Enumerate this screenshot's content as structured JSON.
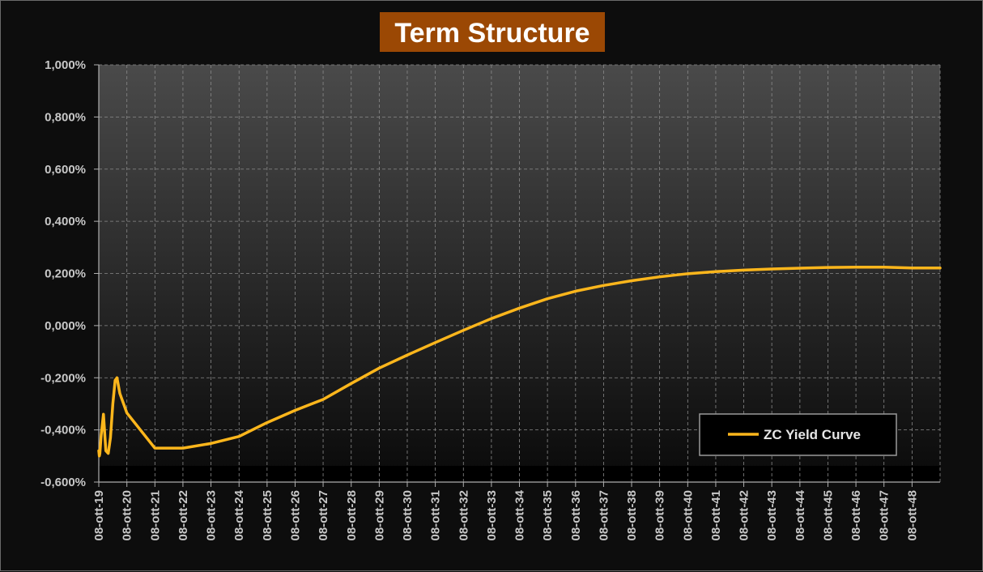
{
  "chart_data": {
    "type": "line",
    "title": "Term Structure",
    "xlabel": "",
    "ylabel": "",
    "x_tick_labels": [
      "08-ott-19",
      "08-ott-20",
      "08-ott-21",
      "08-ott-22",
      "08-ott-23",
      "08-ott-24",
      "08-ott-25",
      "08-ott-26",
      "08-ott-27",
      "08-ott-28",
      "08-ott-29",
      "08-ott-30",
      "08-ott-31",
      "08-ott-32",
      "08-ott-33",
      "08-ott-34",
      "08-ott-35",
      "08-ott-36",
      "08-ott-37",
      "08-ott-38",
      "08-ott-39",
      "08-ott-40",
      "08-ott-41",
      "08-ott-42",
      "08-ott-43",
      "08-ott-44",
      "08-ott-45",
      "08-ott-46",
      "08-ott-47",
      "08-ott-48"
    ],
    "xlim": [
      "2019-10-08",
      "2049-10-08"
    ],
    "y_tick_labels": [
      "1,000%",
      "0,800%",
      "0,600%",
      "0,400%",
      "0,200%",
      "0,000%",
      "-0,200%",
      "-0,400%",
      "-0,600%"
    ],
    "ylim": [
      -0.6,
      1.0
    ],
    "y_unit": "%",
    "grid": true,
    "legend_position": "bottom-right",
    "colors": {
      "line": "#fcb61c",
      "title_bg": "#9b4804",
      "frame_bg": "#0d0d0d",
      "legend_bg": "#000000"
    },
    "series": [
      {
        "name": "ZC Yield Curve",
        "points": [
          [
            "2019-10-08",
            -0.48
          ],
          [
            "2019-10-15",
            -0.5
          ],
          [
            "2019-10-22",
            -0.49
          ],
          [
            "2019-11-08",
            -0.42
          ],
          [
            "2019-12-08",
            -0.34
          ],
          [
            "2020-01-08",
            -0.48
          ],
          [
            "2020-02-08",
            -0.49
          ],
          [
            "2020-03-08",
            -0.43
          ],
          [
            "2020-04-08",
            -0.3
          ],
          [
            "2020-05-08",
            -0.21
          ],
          [
            "2020-06-01",
            -0.2
          ],
          [
            "2020-07-08",
            -0.26
          ],
          [
            "2020-10-08",
            -0.335
          ],
          [
            "2021-10-08",
            -0.47
          ],
          [
            "2022-10-08",
            -0.47
          ],
          [
            "2023-10-08",
            -0.452
          ],
          [
            "2024-10-08",
            -0.425
          ],
          [
            "2025-10-08",
            -0.372
          ],
          [
            "2026-10-08",
            -0.325
          ],
          [
            "2027-10-08",
            -0.283
          ],
          [
            "2028-10-08",
            -0.222
          ],
          [
            "2029-10-08",
            -0.163
          ],
          [
            "2030-10-08",
            -0.113
          ],
          [
            "2031-10-08",
            -0.065
          ],
          [
            "2032-10-08",
            -0.018
          ],
          [
            "2033-10-08",
            0.027
          ],
          [
            "2034-10-08",
            0.067
          ],
          [
            "2035-10-08",
            0.103
          ],
          [
            "2036-10-08",
            0.132
          ],
          [
            "2037-10-08",
            0.154
          ],
          [
            "2038-10-08",
            0.172
          ],
          [
            "2039-10-08",
            0.187
          ],
          [
            "2040-10-08",
            0.199
          ],
          [
            "2041-10-08",
            0.207
          ],
          [
            "2042-10-08",
            0.213
          ],
          [
            "2043-10-08",
            0.217
          ],
          [
            "2044-10-08",
            0.22
          ],
          [
            "2045-10-08",
            0.223
          ],
          [
            "2046-10-08",
            0.224
          ],
          [
            "2047-10-08",
            0.224
          ],
          [
            "2048-10-08",
            0.221
          ],
          [
            "2049-10-08",
            0.221
          ]
        ]
      }
    ]
  }
}
